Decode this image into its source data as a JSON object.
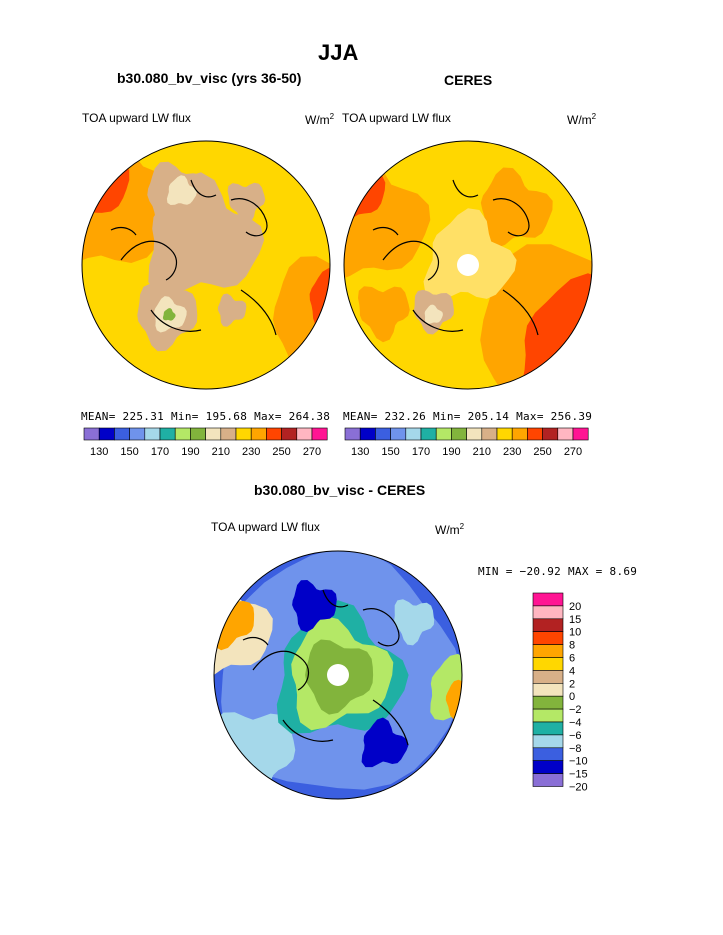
{
  "page": {
    "title": "JJA"
  },
  "palette_colors": [
    "#8a6fd6",
    "#0000c8",
    "#3b5fe0",
    "#6f93ec",
    "#a5d8ea",
    "#1fb0a4",
    "#b4e866",
    "#82b43c",
    "#f3e4bd",
    "#d8b088",
    "#ffd700",
    "#ffa500",
    "#ff4500",
    "#b22222",
    "#ffb6c1",
    "#ff1493"
  ],
  "panels": [
    {
      "title": "b30.080_bv_visc (yrs 36-50)",
      "variable": "TOA upward LW flux",
      "units_base": "W/m",
      "units_exp": "2",
      "stats": "MEAN= 225.31  Min= 195.68  Max= 264.38",
      "colorbar_ticks": [
        "130",
        "150",
        "170",
        "190",
        "210",
        "230",
        "250",
        "270"
      ]
    },
    {
      "title": "CERES",
      "variable": "TOA upward LW flux",
      "units_base": "W/m",
      "units_exp": "2",
      "stats": "MEAN= 232.26  Min= 205.14  Max= 256.39",
      "colorbar_ticks": [
        "130",
        "150",
        "170",
        "190",
        "210",
        "230",
        "250",
        "270"
      ]
    }
  ],
  "difference": {
    "title": "b30.080_bv_visc - CERES",
    "variable": "TOA upward LW flux",
    "units_base": "W/m",
    "units_exp": "2",
    "stats": "MIN = −20.92 MAX =   8.69",
    "colorbar_labels": [
      "20",
      "15",
      "10",
      "8",
      "6",
      "4",
      "2",
      "0",
      "−2",
      "−4",
      "−6",
      "−8",
      "−10",
      "−15",
      "−20"
    ],
    "colorbar_colors": [
      "#ff1493",
      "#ffb6c1",
      "#b22222",
      "#ff4500",
      "#ffa500",
      "#ffd700",
      "#d8b088",
      "#f3e4bd",
      "#82b43c",
      "#b4e866",
      "#1fb0a4",
      "#a5d8ea",
      "#3b5fe0",
      "#0000c8",
      "#8a6fd6"
    ]
  },
  "chart_data": [
    {
      "type": "heatmap",
      "projection": "north polar stereographic",
      "title": "b30.080_bv_visc (yrs 36-50)",
      "season": "JJA",
      "variable": "TOA upward LW flux",
      "units": "W/m2",
      "mean": 225.31,
      "min": 195.68,
      "max": 264.38,
      "contour_levels": [
        130,
        140,
        150,
        160,
        170,
        180,
        190,
        200,
        210,
        220,
        230,
        240,
        250,
        260,
        270
      ]
    },
    {
      "type": "heatmap",
      "projection": "north polar stereographic",
      "title": "CERES",
      "season": "JJA",
      "variable": "TOA upward LW flux",
      "units": "W/m2",
      "mean": 232.26,
      "min": 205.14,
      "max": 256.39,
      "contour_levels": [
        130,
        140,
        150,
        160,
        170,
        180,
        190,
        200,
        210,
        220,
        230,
        240,
        250,
        260,
        270
      ]
    },
    {
      "type": "heatmap",
      "projection": "north polar stereographic",
      "title": "b30.080_bv_visc - CERES",
      "season": "JJA",
      "variable": "TOA upward LW flux",
      "units": "W/m2",
      "min": -20.92,
      "max": 8.69,
      "contour_levels": [
        -20,
        -15,
        -10,
        -8,
        -6,
        -4,
        -2,
        0,
        2,
        4,
        6,
        8,
        10,
        15,
        20
      ]
    }
  ]
}
